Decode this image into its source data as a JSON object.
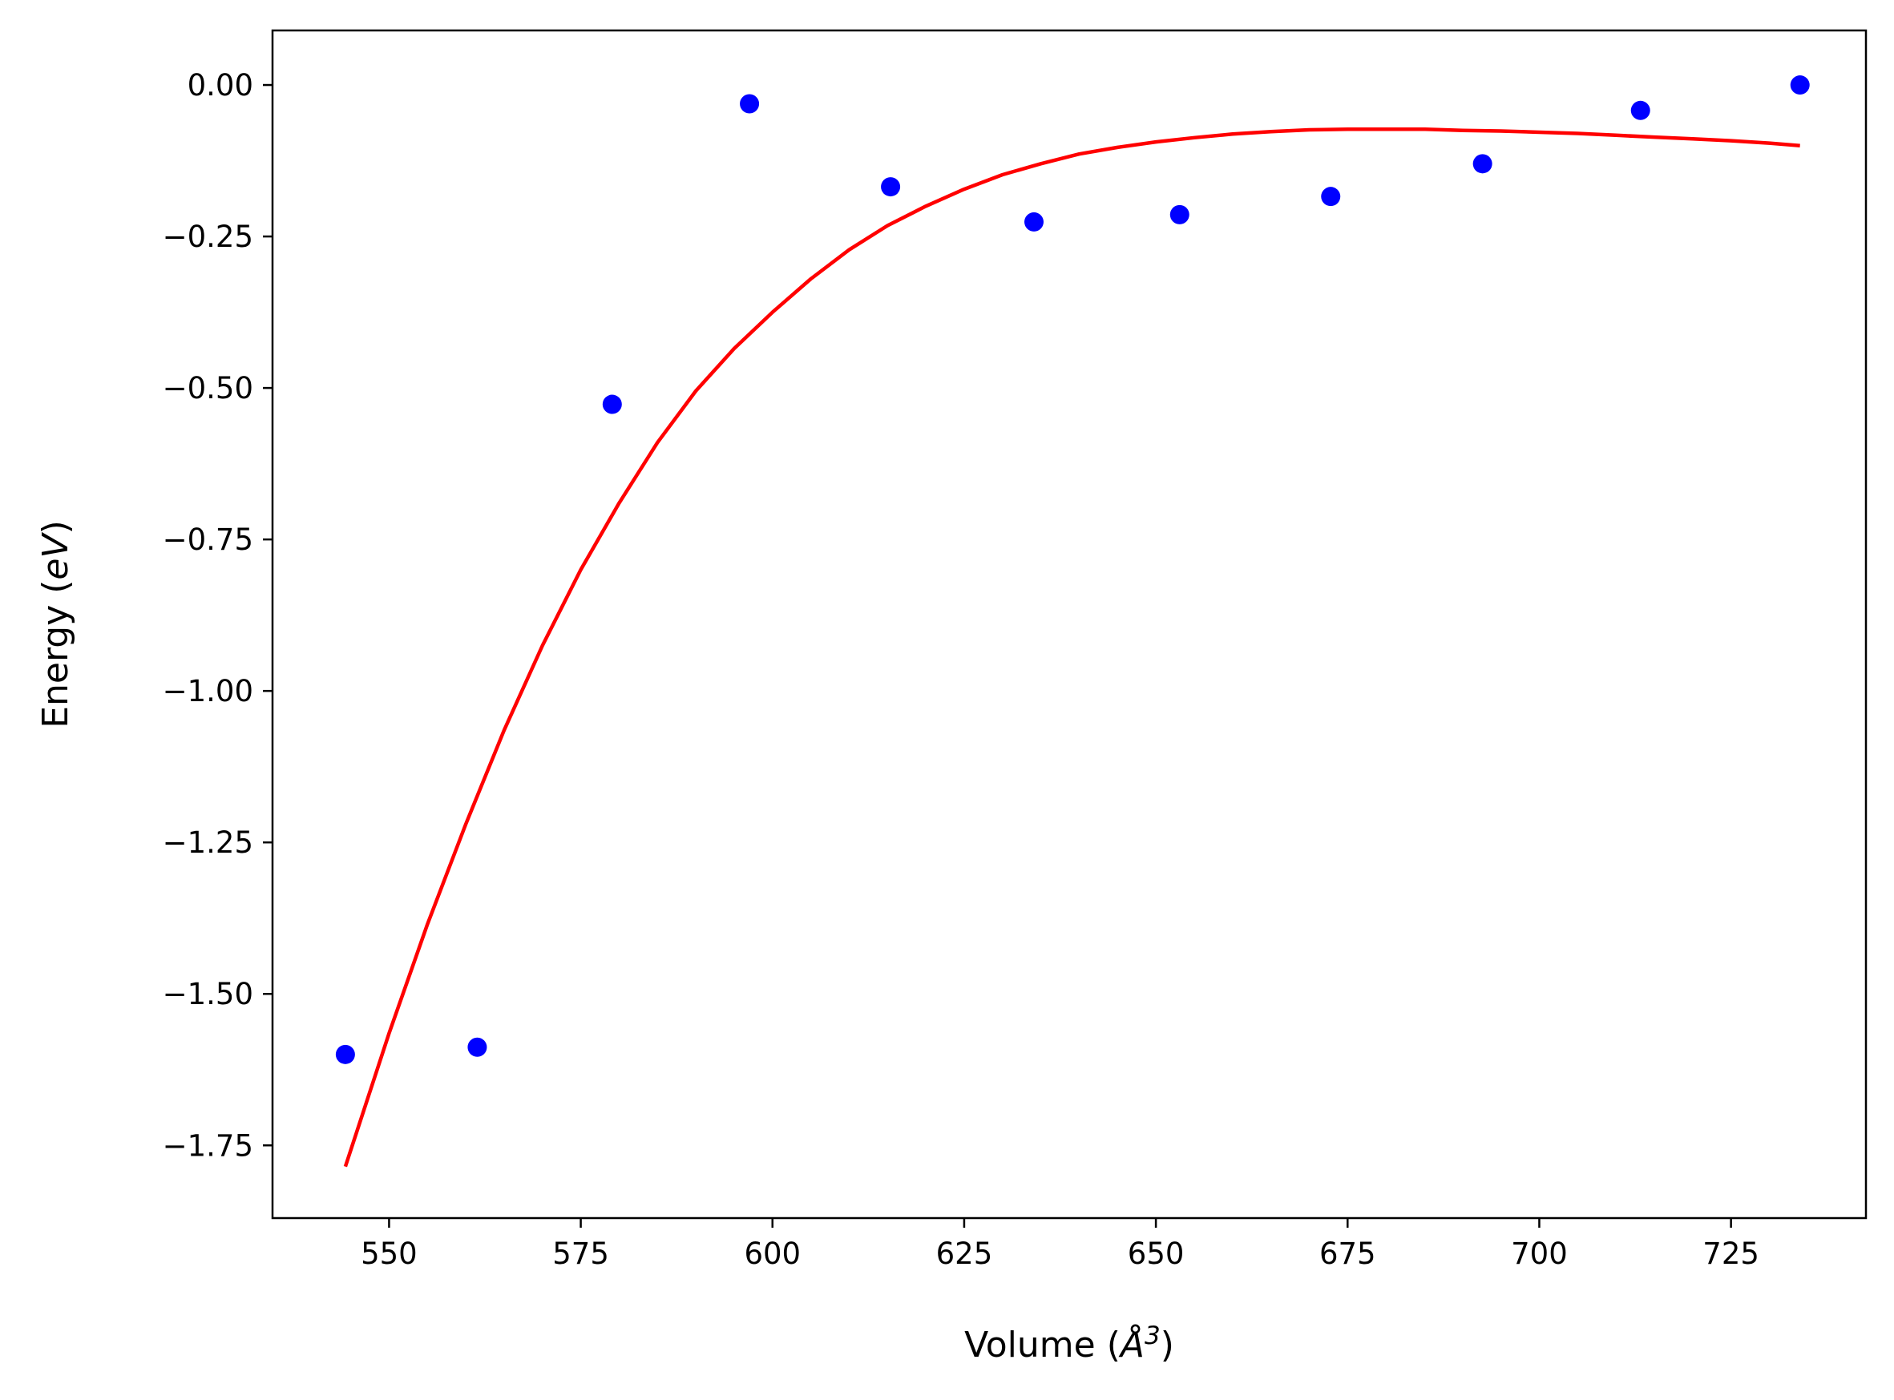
{
  "chart_data": {
    "type": "scatter",
    "xlabel": "Volume (Å³)",
    "xlabel_parts": {
      "prefix": "Volume (",
      "symbol": "Å",
      "power": "3",
      "suffix": ")"
    },
    "ylabel": "Energy (eV)",
    "ylabel_parts": {
      "prefix": "Energy (",
      "symbol": "eV",
      "suffix": ")"
    },
    "xlim": [
      534.8,
      742.6
    ],
    "ylim": [
      -1.87,
      0.09
    ],
    "xticks": [
      550,
      575,
      600,
      625,
      650,
      675,
      700,
      725
    ],
    "xtick_labels": [
      "550",
      "575",
      "600",
      "625",
      "650",
      "675",
      "700",
      "725"
    ],
    "yticks": [
      0.0,
      -0.25,
      -0.5,
      -0.75,
      -1.0,
      -1.25,
      -1.5,
      -1.75
    ],
    "ytick_labels": [
      "0.00",
      "−0.25",
      "−0.50",
      "−0.75",
      "−1.00",
      "−1.25",
      "−1.50",
      "−1.75"
    ],
    "grid": false,
    "series": [
      {
        "kind": "scatter",
        "color": "#0000ff",
        "x": [
          544.3,
          561.5,
          579.1,
          597.0,
          615.4,
          634.1,
          653.1,
          672.8,
          692.6,
          713.2,
          734.0
        ],
        "y": [
          -1.6,
          -1.588,
          -0.527,
          -0.031,
          -0.168,
          -0.226,
          -0.214,
          -0.184,
          -0.13,
          -0.042,
          0.0
        ]
      },
      {
        "kind": "line",
        "color": "#ff0000",
        "x": [
          544.3,
          550,
          555,
          560,
          565,
          570,
          575,
          580,
          585,
          590,
          595,
          600,
          605,
          610,
          615,
          620,
          625,
          630,
          635,
          640,
          645,
          650,
          655,
          660,
          665,
          670,
          675,
          680,
          685,
          690,
          695,
          700,
          705,
          710,
          715,
          720,
          725,
          730,
          734.0
        ],
        "y": [
          -1.785,
          -1.565,
          -1.385,
          -1.22,
          -1.065,
          -0.925,
          -0.8,
          -0.69,
          -0.59,
          -0.505,
          -0.435,
          -0.375,
          -0.32,
          -0.272,
          -0.232,
          -0.2,
          -0.172,
          -0.148,
          -0.13,
          -0.114,
          -0.103,
          -0.094,
          -0.087,
          -0.081,
          -0.077,
          -0.074,
          -0.073,
          -0.073,
          -0.073,
          -0.075,
          -0.076,
          -0.078,
          -0.08,
          -0.083,
          -0.086,
          -0.089,
          -0.092,
          -0.096,
          -0.1
        ]
      }
    ]
  }
}
